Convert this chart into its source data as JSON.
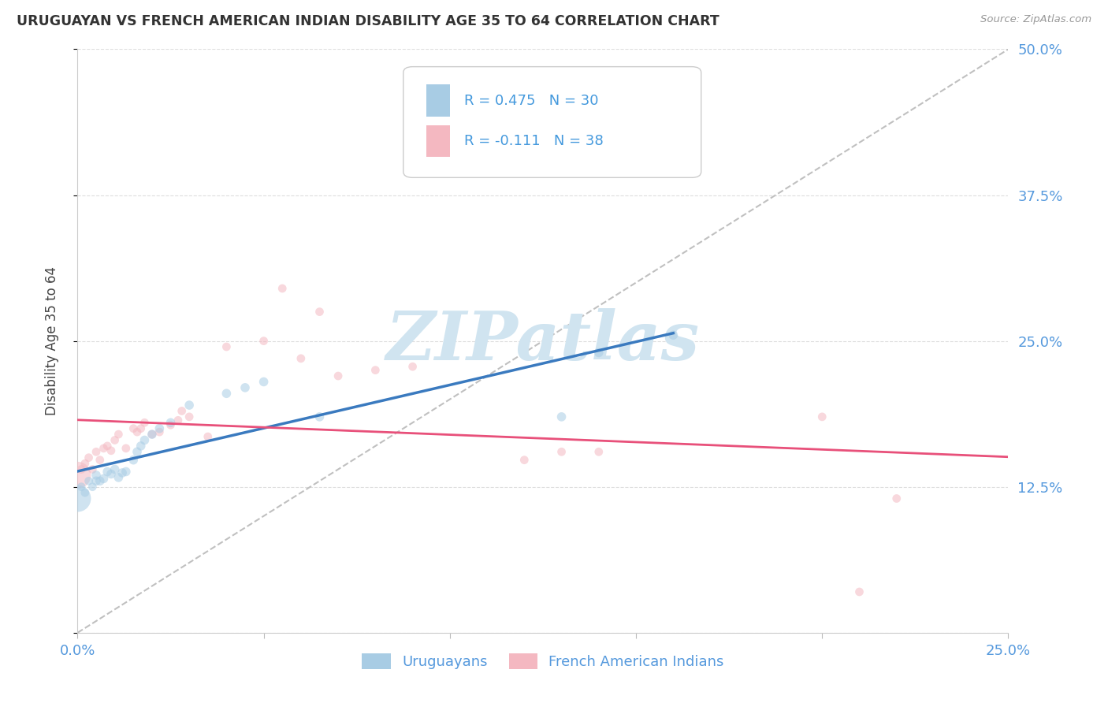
{
  "title": "URUGUAYAN VS FRENCH AMERICAN INDIAN DISABILITY AGE 35 TO 64 CORRELATION CHART",
  "source": "Source: ZipAtlas.com",
  "ylabel_label": "Disability Age 35 to 64",
  "x_min": 0.0,
  "x_max": 0.25,
  "y_min": 0.0,
  "y_max": 0.5,
  "uruguayan_color": "#a8cce4",
  "french_color": "#f4b8c1",
  "uruguayan_line_color": "#3a7abf",
  "french_line_color": "#e8507a",
  "diag_line_color": "#c0c0c0",
  "grid_color": "#dddddd",
  "R_uruguayan": 0.475,
  "N_uruguayan": 30,
  "R_french": -0.111,
  "N_french": 38,
  "legend_text_color": "#4499dd",
  "legend_N_color": "#e03070",
  "tick_color": "#5599dd",
  "watermark": "ZIPatlas",
  "watermark_color": "#d0e4f0",
  "bottom_legend_color": "#5599dd",
  "uruguayan_x": [
    0.0,
    0.001,
    0.002,
    0.003,
    0.004,
    0.005,
    0.005,
    0.006,
    0.007,
    0.008,
    0.009,
    0.01,
    0.011,
    0.012,
    0.013,
    0.015,
    0.016,
    0.017,
    0.018,
    0.02,
    0.022,
    0.025,
    0.03,
    0.04,
    0.045,
    0.05,
    0.065,
    0.13,
    0.14,
    0.16
  ],
  "uruguayan_y": [
    0.115,
    0.125,
    0.12,
    0.13,
    0.125,
    0.13,
    0.135,
    0.13,
    0.132,
    0.138,
    0.136,
    0.14,
    0.133,
    0.137,
    0.138,
    0.148,
    0.155,
    0.16,
    0.165,
    0.17,
    0.175,
    0.18,
    0.195,
    0.205,
    0.21,
    0.215,
    0.185,
    0.185,
    0.24,
    0.255
  ],
  "uruguayan_sizes": [
    600,
    60,
    60,
    60,
    60,
    70,
    70,
    70,
    70,
    70,
    70,
    70,
    70,
    70,
    70,
    70,
    70,
    70,
    70,
    70,
    70,
    70,
    70,
    70,
    70,
    70,
    70,
    70,
    70,
    70
  ],
  "french_x": [
    0.0,
    0.001,
    0.002,
    0.003,
    0.004,
    0.005,
    0.006,
    0.007,
    0.008,
    0.009,
    0.01,
    0.011,
    0.013,
    0.015,
    0.016,
    0.017,
    0.018,
    0.02,
    0.022,
    0.025,
    0.027,
    0.028,
    0.03,
    0.035,
    0.04,
    0.05,
    0.055,
    0.06,
    0.065,
    0.07,
    0.08,
    0.09,
    0.12,
    0.13,
    0.14,
    0.2,
    0.21,
    0.22
  ],
  "french_y": [
    0.135,
    0.14,
    0.145,
    0.15,
    0.14,
    0.155,
    0.148,
    0.158,
    0.16,
    0.156,
    0.165,
    0.17,
    0.158,
    0.175,
    0.172,
    0.175,
    0.18,
    0.17,
    0.172,
    0.178,
    0.182,
    0.19,
    0.185,
    0.168,
    0.245,
    0.25,
    0.295,
    0.235,
    0.275,
    0.22,
    0.225,
    0.228,
    0.148,
    0.155,
    0.155,
    0.185,
    0.035,
    0.115
  ],
  "french_sizes": [
    600,
    60,
    60,
    60,
    60,
    60,
    60,
    60,
    60,
    60,
    60,
    60,
    60,
    60,
    60,
    60,
    60,
    60,
    60,
    60,
    60,
    60,
    60,
    60,
    60,
    60,
    60,
    60,
    60,
    60,
    60,
    60,
    60,
    60,
    60,
    60,
    60,
    60
  ]
}
